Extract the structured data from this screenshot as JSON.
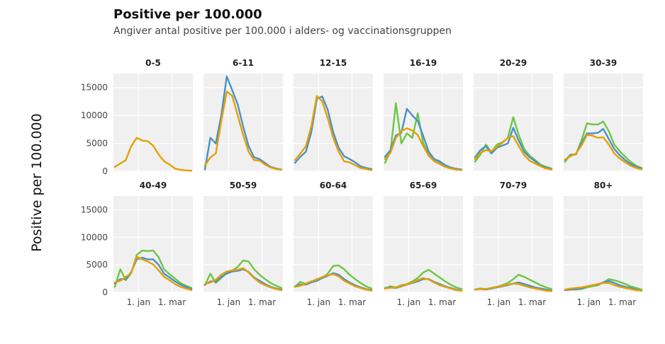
{
  "title": "Positive per 100.000",
  "subtitle": "Angiver antal positive per 100.000 i alders- og vaccinationsgruppen",
  "chart_data": {
    "type": "line",
    "title": "Positive per 100.000",
    "subtitle": "Angiver antal positive per 100.000 i alders- og vaccinationsgruppen",
    "ylabel": "Positive per 100.000",
    "ylim": [
      0,
      17500
    ],
    "yticks": [
      0,
      5000,
      10000,
      15000
    ],
    "ytick_labels": [
      "0",
      "5000",
      "10000",
      "15000"
    ],
    "xticks": [
      6,
      14
    ],
    "xtick_labels": [
      "1. jan",
      "1. mar"
    ],
    "xrange": [
      0,
      19
    ],
    "grid": true,
    "legend": "none",
    "colors": {
      "orange": "#E69F00",
      "blue": "#4A90C8",
      "green": "#6CC644"
    },
    "panels": [
      {
        "label": "0-5",
        "series": [
          {
            "color": "orange",
            "values": [
              800,
              1400,
              2000,
              4500,
              6000,
              5500,
              5400,
              4600,
              3000,
              1800,
              1200,
              500,
              250,
              150,
              100
            ]
          }
        ]
      },
      {
        "label": "6-11",
        "series": [
          {
            "color": "blue",
            "values": [
              300,
              6000,
              5000,
              10000,
              17000,
              14500,
              12000,
              8000,
              4500,
              2500,
              2200,
              1500,
              800,
              500,
              300
            ]
          },
          {
            "color": "orange",
            "values": [
              1000,
              2500,
              3200,
              9000,
              14300,
              13500,
              10000,
              6500,
              3500,
              2000,
              1900,
              1200,
              700,
              400,
              250
            ]
          }
        ]
      },
      {
        "label": "12-15",
        "series": [
          {
            "color": "blue",
            "values": [
              1500,
              2600,
              3500,
              7000,
              13000,
              13400,
              11000,
              7000,
              4200,
              2700,
              2200,
              1600,
              900,
              600,
              400
            ]
          },
          {
            "color": "orange",
            "values": [
              2000,
              3200,
              4500,
              8000,
              13500,
              12500,
              9500,
              6000,
              3500,
              1800,
              1600,
              1100,
              600,
              400,
              200
            ]
          }
        ]
      },
      {
        "label": "16-19",
        "series": [
          {
            "color": "green",
            "values": [
              1500,
              3500,
              12200,
              5000,
              6800,
              6000,
              10400,
              5000,
              3000,
              2000,
              1600,
              1000,
              600,
              400,
              300
            ]
          },
          {
            "color": "blue",
            "values": [
              2600,
              3800,
              6400,
              6900,
              11200,
              10000,
              9000,
              6300,
              3500,
              2200,
              1800,
              1100,
              700,
              450,
              300
            ]
          },
          {
            "color": "orange",
            "values": [
              2200,
              3300,
              6000,
              7200,
              7700,
              7300,
              6500,
              4500,
              2800,
              1800,
              1300,
              800,
              500,
              300,
              200
            ]
          }
        ]
      },
      {
        "label": "20-29",
        "series": [
          {
            "color": "green",
            "values": [
              1700,
              3000,
              4800,
              3400,
              4800,
              5200,
              6000,
              9700,
              6500,
              4000,
              2800,
              2000,
              1200,
              800,
              500
            ]
          },
          {
            "color": "blue",
            "values": [
              2500,
              3800,
              4500,
              3200,
              4200,
              4600,
              5000,
              7800,
              5500,
              3500,
              2500,
              1800,
              1000,
              700,
              400
            ]
          },
          {
            "color": "orange",
            "values": [
              2200,
              3300,
              3800,
              3600,
              4400,
              5100,
              6000,
              6300,
              4500,
              2900,
              1900,
              1400,
              900,
              500,
              300
            ]
          }
        ]
      },
      {
        "label": "30-39",
        "series": [
          {
            "color": "green",
            "values": [
              1700,
              3000,
              3000,
              5500,
              8600,
              8400,
              8400,
              8900,
              7200,
              4800,
              3600,
              2600,
              1700,
              1000,
              600
            ]
          },
          {
            "color": "blue",
            "values": [
              2000,
              2900,
              3100,
              5000,
              6800,
              6800,
              6900,
              7600,
              5800,
              4000,
              2900,
              2000,
              1300,
              800,
              500
            ]
          },
          {
            "color": "orange",
            "values": [
              2100,
              2700,
              3200,
              4600,
              6500,
              6400,
              6000,
              6100,
              4800,
              3200,
              2300,
              1600,
              1000,
              600,
              350
            ]
          }
        ]
      },
      {
        "label": "40-49",
        "series": [
          {
            "color": "green",
            "values": [
              1000,
              4200,
              2200,
              3500,
              6800,
              7600,
              7500,
              7600,
              6400,
              4200,
              3300,
              2500,
              1700,
              1200,
              800
            ]
          },
          {
            "color": "blue",
            "values": [
              1600,
              2400,
              2400,
              3700,
              6000,
              6300,
              6000,
              6000,
              5000,
              3400,
              2700,
              2000,
              1400,
              1000,
              600
            ]
          },
          {
            "color": "orange",
            "values": [
              1800,
              2100,
              2800,
              3500,
              6500,
              6000,
              5600,
              5100,
              4000,
              2800,
              2200,
              1500,
              1000,
              700,
              400
            ]
          }
        ]
      },
      {
        "label": "50-59",
        "series": [
          {
            "color": "green",
            "values": [
              1300,
              3400,
              1700,
              2600,
              3600,
              4000,
              4600,
              5800,
              5600,
              4200,
              3200,
              2400,
              1700,
              1200,
              800
            ]
          },
          {
            "color": "blue",
            "values": [
              1400,
              2000,
              2000,
              2800,
              3400,
              3800,
              3900,
              4200,
              3700,
              2700,
              2100,
              1500,
              1000,
              700,
              500
            ]
          },
          {
            "color": "orange",
            "values": [
              1500,
              1800,
              2300,
              3200,
              3800,
              4000,
              4100,
              4400,
              3600,
              2600,
              1800,
              1300,
              900,
              600,
              400
            ]
          }
        ]
      },
      {
        "label": "60-64",
        "series": [
          {
            "color": "green",
            "values": [
              1000,
              1900,
              1500,
              1900,
              2400,
              2600,
              3400,
              4800,
              4900,
              4200,
              3200,
              2400,
              1700,
              1100,
              700
            ]
          },
          {
            "color": "blue",
            "values": [
              1100,
              1400,
              1400,
              1800,
              2100,
              2600,
              3000,
              3500,
              3200,
              2400,
              1800,
              1300,
              900,
              600,
              400
            ]
          },
          {
            "color": "orange",
            "values": [
              1000,
              1200,
              1600,
              2000,
              2300,
              2800,
              3100,
              3300,
              2900,
              2100,
              1600,
              1100,
              800,
              500,
              300
            ]
          }
        ]
      },
      {
        "label": "65-69",
        "series": [
          {
            "color": "green",
            "values": [
              700,
              1100,
              900,
              1300,
              1500,
              2000,
              2600,
              3600,
              4100,
              3400,
              2700,
              2000,
              1400,
              900,
              600
            ]
          },
          {
            "color": "blue",
            "values": [
              800,
              900,
              800,
              1100,
              1400,
              1700,
              2000,
              2400,
              2400,
              1900,
              1500,
              1100,
              800,
              500,
              300
            ]
          },
          {
            "color": "orange",
            "values": [
              700,
              800,
              900,
              1200,
              1400,
              1800,
              2200,
              2600,
              2300,
              1800,
              1300,
              1000,
              700,
              400,
              300
            ]
          }
        ]
      },
      {
        "label": "70-79",
        "series": [
          {
            "color": "green",
            "values": [
              500,
              700,
              600,
              800,
              1000,
              1300,
              1700,
              2400,
              3200,
              2800,
              2300,
              1800,
              1300,
              900,
              600
            ]
          },
          {
            "color": "blue",
            "values": [
              500,
              600,
              500,
              700,
              900,
              1100,
              1300,
              1600,
              1800,
              1500,
              1200,
              900,
              700,
              500,
              300
            ]
          },
          {
            "color": "orange",
            "values": [
              500,
              600,
              600,
              800,
              1000,
              1200,
              1400,
              1600,
              1500,
              1200,
              900,
              700,
              500,
              300,
              200
            ]
          }
        ]
      },
      {
        "label": "80+",
        "series": [
          {
            "color": "green",
            "values": [
              400,
              500,
              500,
              600,
              900,
              1100,
              1300,
              1800,
              2400,
              2200,
              1900,
              1500,
              1100,
              800,
              500
            ]
          },
          {
            "color": "blue",
            "values": [
              400,
              500,
              600,
              700,
              1100,
              1300,
              1400,
              1800,
              2100,
              1700,
              1300,
              1000,
              800,
              500,
              300
            ]
          },
          {
            "color": "orange",
            "values": [
              500,
              700,
              800,
              900,
              1100,
              1300,
              1500,
              1700,
              1700,
              1300,
              1000,
              800,
              600,
              400,
              300
            ]
          }
        ]
      }
    ]
  }
}
